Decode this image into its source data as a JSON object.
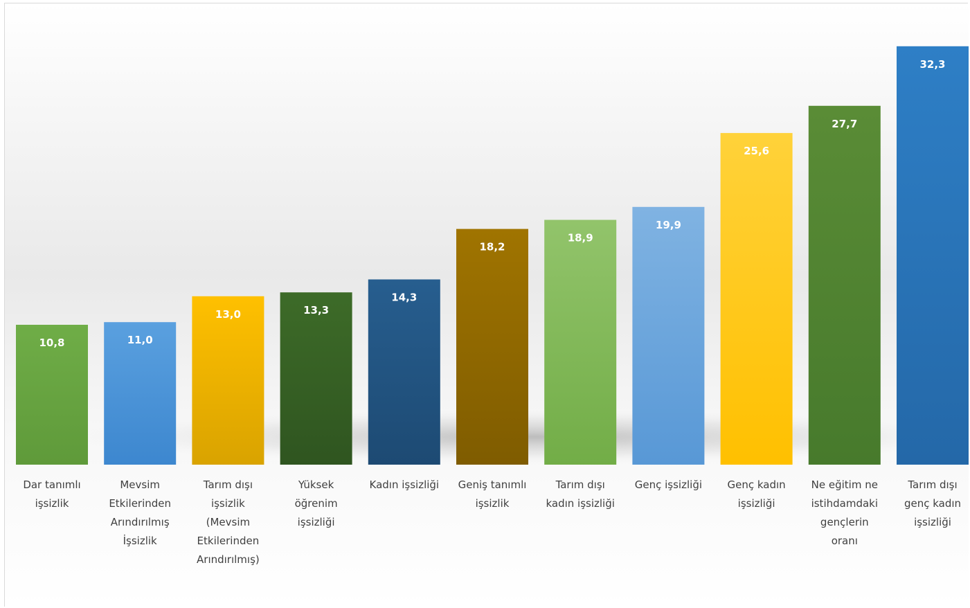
{
  "chart_data": {
    "type": "bar",
    "title": "",
    "xlabel": "",
    "ylabel": "",
    "ylim": [
      0,
      34
    ],
    "grid": false,
    "legend": "none",
    "categories": [
      "Dar tanımlı işsizlik",
      "Mevsim Etkilerinden Arındırılmış İşsizlik",
      "Tarım dışı işsizlik (Mevsim Etkilerinden Arındırılmış)",
      "Yüksek öğrenim işsizliği",
      "Kadın işsizliği",
      "Geniş tanımlı işsizlik",
      "Tarım dışı kadın işsizliği",
      "Genç işsizliği",
      "Genç kadın işsizliği",
      "Ne eğitim ne istihdamdaki gençlerin oranı",
      "Tarım dışı genç kadın işsizliği"
    ],
    "category_label_lines": [
      [
        "Dar tanımlı",
        "işsizlik"
      ],
      [
        "Mevsim",
        "Etkilerinden",
        "Arındırılmış",
        "İşsizlik"
      ],
      [
        "Tarım dışı",
        "işsizlik",
        "(Mevsim",
        "Etkilerinden",
        "Arındırılmış)"
      ],
      [
        "Yüksek",
        "öğrenim",
        "işsizliği"
      ],
      [
        "Kadın işsizliği"
      ],
      [
        "Geniş tanımlı",
        "işsizlik"
      ],
      [
        "Tarım dışı",
        "kadın işsizliği"
      ],
      [
        "Genç işsizliği"
      ],
      [
        "Genç kadın",
        "işsizliği"
      ],
      [
        "Ne eğitim ne",
        "istihdamdaki",
        "gençlerin",
        "oranı"
      ],
      [
        "Tarım dışı",
        "genç kadın",
        "işsizliği"
      ]
    ],
    "values": [
      10.8,
      11.0,
      13.0,
      13.3,
      14.3,
      18.2,
      18.9,
      19.9,
      25.6,
      27.7,
      32.3
    ],
    "value_labels": [
      "10,8",
      "11,0",
      "13,0",
      "13,3",
      "14,3",
      "18,2",
      "18,9",
      "19,9",
      "25,6",
      "27,7",
      "32,3"
    ],
    "colors": [
      [
        "#6fad47",
        "#5f9a3a"
      ],
      [
        "#5aa0df",
        "#3d87cf"
      ],
      [
        "#ffc000",
        "#d9a300"
      ],
      [
        "#3d6b28",
        "#2f5520"
      ],
      [
        "#275e8f",
        "#1d4a73"
      ],
      [
        "#a07400",
        "#7f5c00"
      ],
      [
        "#92c46b",
        "#72ad47"
      ],
      [
        "#80b3e2",
        "#5898d6"
      ],
      [
        "#ffd23a",
        "#ffc000"
      ],
      [
        "#5a8c36",
        "#477a2c"
      ],
      [
        "#2e7fc6",
        "#2468a8"
      ]
    ]
  }
}
